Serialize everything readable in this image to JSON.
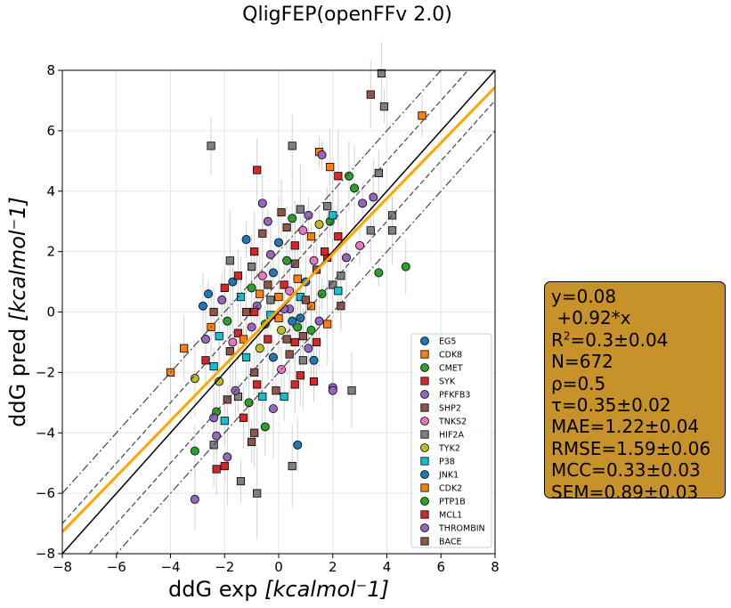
{
  "chart_data": {
    "type": "scatter",
    "title": "QligFEP(openFFv 2.0)",
    "xlabel_prefix": "ddG exp ",
    "ylabel_prefix": "ddG pred ",
    "unit_label": "[kcalmol⁻1]",
    "xlim": [
      -8,
      8
    ],
    "ylim": [
      -8,
      8
    ],
    "xticks": [
      "−8",
      "−6",
      "−4",
      "−2",
      "0",
      "2",
      "4",
      "6",
      "8"
    ],
    "yticks": [
      "−8",
      "−6",
      "−4",
      "−2",
      "0",
      "2",
      "4",
      "6",
      "8"
    ],
    "tick_values": [
      -8,
      -6,
      -4,
      -2,
      0,
      2,
      4,
      6,
      8
    ],
    "grid": true,
    "legend_position": "lower-right",
    "reference_lines": {
      "identity": {
        "slope": 1,
        "intercept": 0,
        "color": "#000000"
      },
      "fit": {
        "slope": 0.92,
        "intercept": 0.08,
        "color": "#ffa500"
      },
      "dashed_offsets": [
        1,
        -1
      ],
      "dashdot_offsets": [
        2,
        -2
      ]
    },
    "series": [
      {
        "name": "EG5",
        "marker": "circle",
        "color": "#1f77b4"
      },
      {
        "name": "CDK8",
        "marker": "square",
        "color": "#ff7f0e"
      },
      {
        "name": "CMET",
        "marker": "circle",
        "color": "#2ca02c"
      },
      {
        "name": "SYK",
        "marker": "square",
        "color": "#d62728"
      },
      {
        "name": "PFKFB3",
        "marker": "circle",
        "color": "#9467bd"
      },
      {
        "name": "SHP2",
        "marker": "square",
        "color": "#8c564b"
      },
      {
        "name": "TNKS2",
        "marker": "circle",
        "color": "#e377c2"
      },
      {
        "name": "HIF2A",
        "marker": "square",
        "color": "#7f7f7f"
      },
      {
        "name": "TYK2",
        "marker": "circle",
        "color": "#bcbd22"
      },
      {
        "name": "P38",
        "marker": "square",
        "color": "#17becf"
      },
      {
        "name": "JNK1",
        "marker": "circle",
        "color": "#1f77b4"
      },
      {
        "name": "CDK2",
        "marker": "square",
        "color": "#ff7f0e"
      },
      {
        "name": "PTP1B",
        "marker": "circle",
        "color": "#2ca02c"
      },
      {
        "name": "MCL1",
        "marker": "square",
        "color": "#d62728"
      },
      {
        "name": "THROMBIN",
        "marker": "circle",
        "color": "#9467bd"
      },
      {
        "name": "BACE",
        "marker": "square",
        "color": "#8c564b"
      }
    ],
    "points": [
      [
        3.8,
        7.9,
        7
      ],
      [
        3.4,
        7.2,
        5
      ],
      [
        3.9,
        6.8,
        7
      ],
      [
        5.3,
        6.5,
        1
      ],
      [
        -2.5,
        5.5,
        7
      ],
      [
        0.5,
        5.5,
        7
      ],
      [
        1.5,
        5.3,
        1
      ],
      [
        2.2,
        4.5,
        3
      ],
      [
        2.6,
        4.5,
        2
      ],
      [
        4.7,
        1.5,
        2
      ],
      [
        3.7,
        4.6,
        7
      ],
      [
        2.8,
        4.1,
        2
      ],
      [
        1.9,
        4.8,
        1
      ],
      [
        1.6,
        5.2,
        4
      ],
      [
        -0.8,
        4.7,
        3
      ],
      [
        3.1,
        3.6,
        4
      ],
      [
        3.5,
        3.8,
        4
      ],
      [
        4.2,
        3.2,
        7
      ],
      [
        4.2,
        2.7,
        7
      ],
      [
        3.4,
        2.7,
        7
      ],
      [
        3.0,
        2.2,
        6
      ],
      [
        3.7,
        1.3,
        2
      ],
      [
        2.3,
        1.2,
        7
      ],
      [
        -1.8,
        1.7,
        7
      ],
      [
        1.9,
        3.0,
        2
      ],
      [
        -0.6,
        3.6,
        4
      ],
      [
        2.0,
        3.2,
        9
      ],
      [
        1.8,
        3.5,
        7
      ],
      [
        -4.0,
        -2.0,
        1
      ],
      [
        -3.5,
        -1.2,
        1
      ],
      [
        -3.1,
        -2.2,
        8
      ],
      [
        -2.7,
        -1.6,
        3
      ],
      [
        -2.4,
        -1.8,
        9
      ],
      [
        -2.2,
        -2.3,
        8
      ],
      [
        -2.7,
        -0.9,
        4
      ],
      [
        -2.3,
        -3.3,
        2
      ],
      [
        -2.4,
        -3.5,
        4
      ],
      [
        -2.0,
        -3.6,
        9
      ],
      [
        -2.3,
        -4.1,
        14
      ],
      [
        -2.4,
        -4.4,
        7
      ],
      [
        -3.1,
        -4.6,
        2
      ],
      [
        -2.3,
        -5.2,
        3
      ],
      [
        -2.0,
        -5.1,
        3
      ],
      [
        -1.9,
        -4.8,
        4
      ],
      [
        -1.4,
        -5.6,
        7
      ],
      [
        -0.8,
        -6.0,
        7
      ],
      [
        -3.1,
        -6.2,
        4
      ],
      [
        -1.0,
        -4.3,
        5
      ],
      [
        -0.9,
        -4.0,
        5
      ],
      [
        0.7,
        -4.4,
        0
      ],
      [
        0.5,
        -5.1,
        7
      ],
      [
        2.7,
        -2.6,
        7
      ],
      [
        2.0,
        -2.5,
        4
      ],
      [
        1.3,
        -2.3,
        3
      ],
      [
        0.8,
        -2.1,
        3
      ],
      [
        -1.5,
        -2.8,
        7
      ],
      [
        -1.9,
        -2.9,
        5
      ],
      [
        -1.6,
        -2.6,
        14
      ],
      [
        -1.1,
        -3.0,
        12
      ],
      [
        -0.6,
        -2.8,
        9
      ],
      [
        -0.2,
        -3.2,
        4
      ],
      [
        0.2,
        -2.8,
        9
      ],
      [
        -0.5,
        -3.8,
        2
      ],
      [
        -1.3,
        -3.5,
        13
      ],
      [
        -2.5,
        -0.5,
        11
      ],
      [
        -1.7,
        -1.0,
        6
      ],
      [
        -1.5,
        -0.7,
        3
      ],
      [
        -1.2,
        -1.5,
        9
      ],
      [
        -0.9,
        -2.0,
        5
      ],
      [
        -0.7,
        -1.2,
        8
      ],
      [
        -0.4,
        -0.9,
        13
      ],
      [
        -0.2,
        -1.5,
        0
      ],
      [
        0.1,
        -1.9,
        6
      ],
      [
        0.4,
        -1.4,
        5
      ],
      [
        0.6,
        -1.0,
        3
      ],
      [
        0.9,
        -1.6,
        7
      ],
      [
        1.2,
        -0.6,
        2
      ],
      [
        1.5,
        -0.3,
        4
      ],
      [
        1.4,
        -1.0,
        13
      ],
      [
        0.8,
        -0.2,
        10
      ],
      [
        -2.8,
        0.2,
        0
      ],
      [
        -2.6,
        0.6,
        10
      ],
      [
        -2.4,
        0.0,
        15
      ],
      [
        -2.1,
        0.4,
        4
      ],
      [
        -1.9,
        -0.3,
        12
      ],
      [
        -1.7,
        1.0,
        0
      ],
      [
        -1.4,
        0.5,
        9
      ],
      [
        -1.2,
        0.0,
        5
      ],
      [
        -1.0,
        0.8,
        2
      ],
      [
        -0.8,
        0.2,
        14
      ],
      [
        -0.6,
        1.2,
        6
      ],
      [
        -0.3,
        0.4,
        7
      ],
      [
        0.0,
        -0.2,
        1
      ],
      [
        0.2,
        0.9,
        3
      ],
      [
        0.4,
        0.1,
        4
      ],
      [
        0.6,
        1.6,
        15
      ],
      [
        0.8,
        0.5,
        9
      ],
      [
        1.0,
        1.0,
        0
      ],
      [
        1.2,
        0.2,
        11
      ],
      [
        1.4,
        1.4,
        5
      ],
      [
        1.6,
        0.6,
        2
      ],
      [
        1.8,
        1.8,
        13
      ],
      [
        2.0,
        0.9,
        7
      ],
      [
        2.2,
        0.7,
        9
      ],
      [
        1.7,
        2.0,
        3
      ],
      [
        -1.2,
        2.4,
        0
      ],
      [
        -0.9,
        2.0,
        3
      ],
      [
        -0.6,
        2.6,
        15
      ],
      [
        -0.3,
        1.9,
        4
      ],
      [
        0.0,
        2.3,
        0
      ],
      [
        0.3,
        2.8,
        5
      ],
      [
        0.6,
        2.2,
        13
      ],
      [
        0.9,
        2.7,
        6
      ],
      [
        1.2,
        2.5,
        1
      ],
      [
        1.5,
        2.9,
        8
      ],
      [
        -0.4,
        3.0,
        14
      ],
      [
        0.1,
        3.3,
        5
      ],
      [
        0.5,
        3.1,
        2
      ],
      [
        0.8,
        3.4,
        7
      ],
      [
        1.1,
        3.2,
        4
      ],
      [
        -1.0,
        1.5,
        7
      ],
      [
        -0.2,
        1.3,
        10
      ],
      [
        0.3,
        1.7,
        12
      ],
      [
        0.7,
        1.1,
        1
      ],
      [
        1.3,
        1.7,
        6
      ],
      [
        -1.5,
        1.2,
        13
      ],
      [
        -2.0,
        0.8,
        3
      ],
      [
        -2.2,
        -0.8,
        9
      ],
      [
        -1.8,
        -1.3,
        15
      ],
      [
        -1.0,
        -0.5,
        4
      ],
      [
        -0.5,
        -0.4,
        2
      ],
      [
        0.1,
        -0.6,
        8
      ],
      [
        0.3,
        -0.9,
        15
      ],
      [
        0.5,
        -0.3,
        0
      ],
      [
        0.9,
        -0.8,
        5
      ],
      [
        1.1,
        -1.2,
        4
      ],
      [
        1.3,
        -1.6,
        10
      ],
      [
        0.6,
        -2.4,
        13
      ],
      [
        -0.1,
        -2.6,
        5
      ],
      [
        -0.8,
        -2.4,
        3
      ],
      [
        2.0,
        -2.6,
        4
      ],
      [
        1.8,
        -0.4,
        1
      ],
      [
        2.3,
        0.2,
        5
      ],
      [
        2.5,
        1.8,
        4
      ],
      [
        2.2,
        2.5,
        13
      ],
      [
        -0.7,
        0.6,
        1
      ],
      [
        -0.4,
        0.9,
        5
      ],
      [
        0.0,
        0.5,
        11
      ],
      [
        0.2,
        0.1,
        14
      ],
      [
        0.4,
        0.7,
        6
      ],
      [
        -0.3,
        -0.1,
        9
      ],
      [
        -0.9,
        0.0,
        3
      ],
      [
        0.7,
        -0.5,
        12
      ],
      [
        1.0,
        0.4,
        15
      ],
      [
        -1.3,
        -0.9,
        1
      ]
    ]
  },
  "stats_box": {
    "line1": "y=0.08",
    "line2": "+0.92*x",
    "r2_prefix": "R",
    "r2_sup": "2",
    "r2_value": "=0.3±0.04",
    "n": "N=672",
    "rho": "ρ=0.5",
    "tau": "τ=0.35±0.02",
    "mae": "MAE=1.22±0.04",
    "rmse": "RMSE=1.59±0.06",
    "mcc": "MCC=0.33±0.03",
    "sem": "SEM=0.89±0.03",
    "background": "#c8922a"
  }
}
